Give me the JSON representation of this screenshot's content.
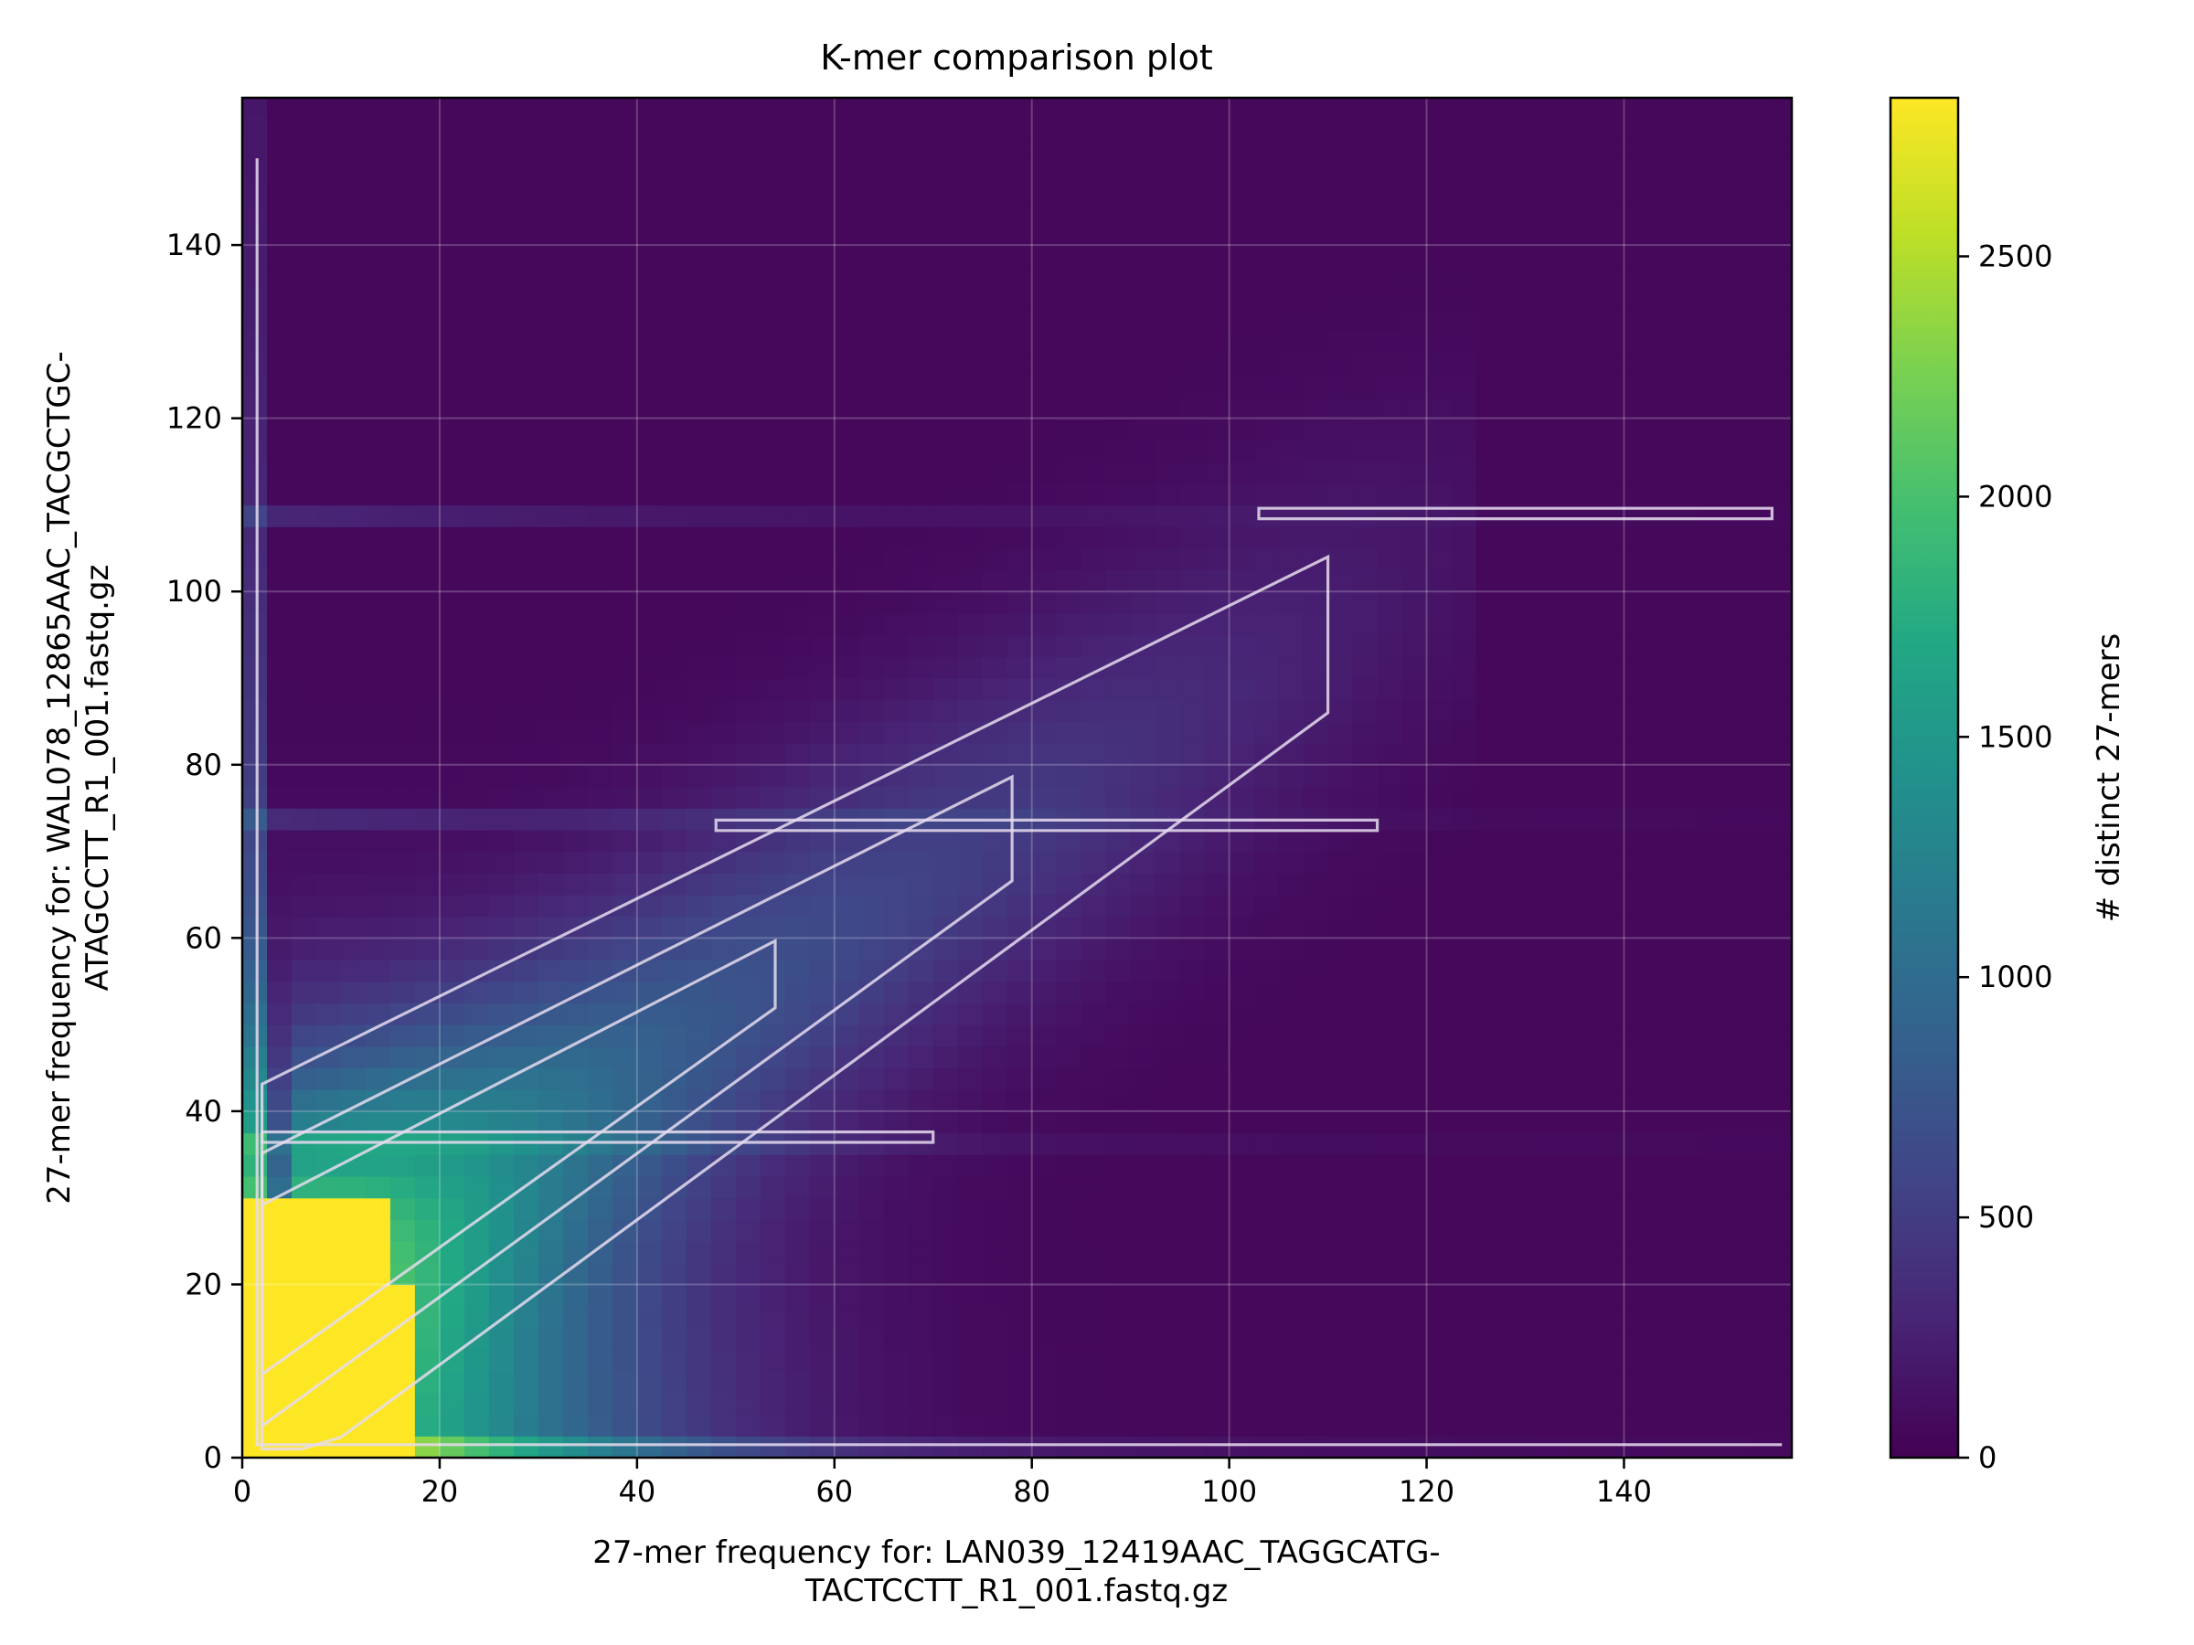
{
  "chart_data": {
    "type": "heatmap",
    "title": "K-mer comparison plot",
    "xlabel_lines": [
      "27-mer frequency for: LAN039_12419AAC_TAGGCATG-",
      "TACTCCTT_R1_001.fastq.gz"
    ],
    "ylabel_lines": [
      "27-mer frequency for: WAL078_12865AAC_TACGCTGC-",
      "ATAGCCTT_R1_001.fastq.gz"
    ],
    "xlim": [
      0,
      157
    ],
    "ylim": [
      0,
      157
    ],
    "x_ticks": [
      0,
      20,
      40,
      60,
      80,
      100,
      120,
      140
    ],
    "y_ticks": [
      0,
      20,
      40,
      60,
      80,
      100,
      120,
      140
    ],
    "grid": true,
    "colorscale": "viridis",
    "colorbar": {
      "label": "# distinct 27-mers",
      "range": [
        0,
        2830
      ],
      "ticks": [
        0,
        500,
        1000,
        1500,
        2000,
        2500
      ]
    },
    "features": {
      "saturated_low_corner": {
        "x_max": 18,
        "y_max": 30,
        "value": 2830
      },
      "diagonal_ridge": {
        "x_start": 10,
        "y_start": 25,
        "x_end": 110,
        "y_end": 95,
        "peak_value": 900
      },
      "horizontal_streaks_y": [
        37,
        73,
        109
      ],
      "axis_ridges": {
        "near_x0": 1600,
        "near_y0": 1000
      }
    }
  }
}
